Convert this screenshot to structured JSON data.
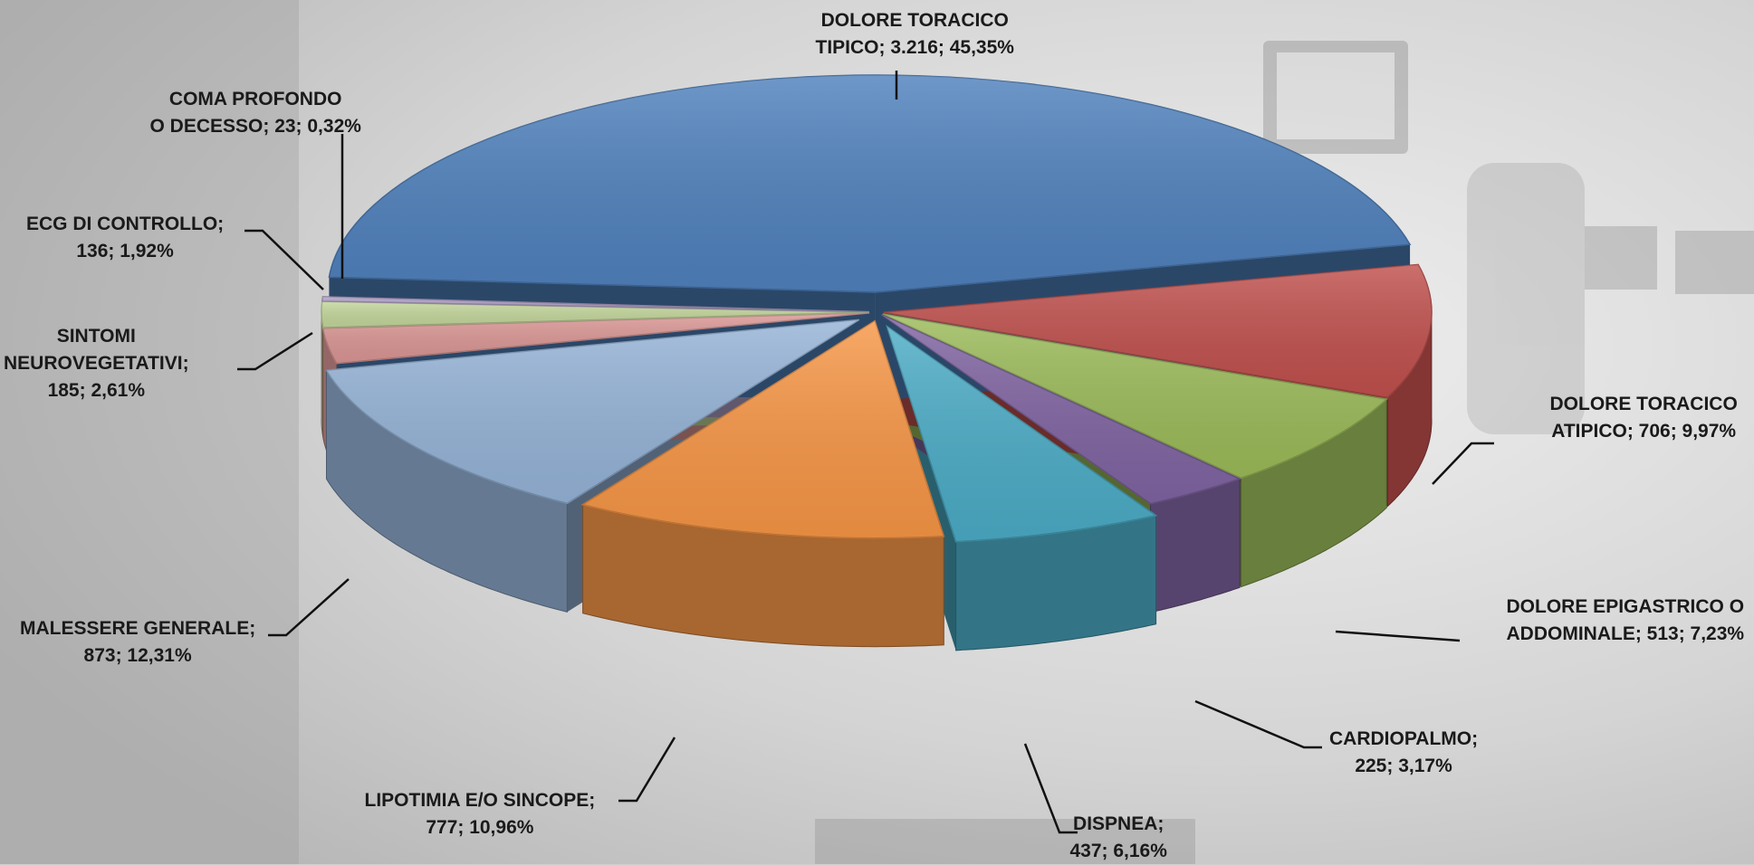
{
  "chart_data": {
    "type": "pie",
    "variant": "3d-exploded",
    "title": "",
    "slices": [
      {
        "key": "dolore-toracico-tipico",
        "label_lines": [
          "DOLORE TORACICO",
          "TIPICO; 3.216; 45,35%"
        ],
        "name": "DOLORE TORACICO TIPICO",
        "value": 3216,
        "percent": 45.35,
        "color": "#4f81bd"
      },
      {
        "key": "dolore-toracico-atipico",
        "label_lines": [
          "DOLORE TORACICO",
          "ATIPICO; 706; 9,97%"
        ],
        "name": "DOLORE TORACICO ATIPICO",
        "value": 706,
        "percent": 9.97,
        "color": "#c0504d"
      },
      {
        "key": "dolore-epigastrico",
        "label_lines": [
          "DOLORE EPIGASTRICO O",
          "ADDOMINALE; 513; 7,23%"
        ],
        "name": "DOLORE EPIGASTRICO O ADDOMINALE",
        "value": 513,
        "percent": 7.23,
        "color": "#9bbb59"
      },
      {
        "key": "cardiopalmo",
        "label_lines": [
          "CARDIOPALMO;",
          "225; 3,17%"
        ],
        "name": "CARDIOPALMO",
        "value": 225,
        "percent": 3.17,
        "color": "#8064a2"
      },
      {
        "key": "dispnea",
        "label_lines": [
          "DISPNEA;",
          "437; 6,16%"
        ],
        "name": "DISPNEA",
        "value": 437,
        "percent": 6.16,
        "color": "#4bacc6"
      },
      {
        "key": "lipotimia",
        "label_lines": [
          "LIPOTIMIA E/O SINCOPE;",
          "777; 10,96%"
        ],
        "name": "LIPOTIMIA E/O SINCOPE",
        "value": 777,
        "percent": 10.96,
        "color": "#f79646"
      },
      {
        "key": "malessere-generale",
        "label_lines": [
          "MALESSERE GENERALE;",
          "873; 12,31%"
        ],
        "name": "MALESSERE GENERALE",
        "value": 873,
        "percent": 12.31,
        "color": "#95b3d7"
      },
      {
        "key": "sintomi-neurovegetativi",
        "label_lines": [
          "SINTOMI",
          "NEUROVEGETATIVI;",
          "185; 2,61%"
        ],
        "name": "SINTOMI NEUROVEGETATIVI",
        "value": 185,
        "percent": 2.61,
        "color": "#da9694"
      },
      {
        "key": "ecg-di-controllo",
        "label_lines": [
          "ECG DI CONTROLLO;",
          "136; 1,92%"
        ],
        "name": "ECG DI CONTROLLO",
        "value": 136,
        "percent": 1.92,
        "color": "#c3d69b"
      },
      {
        "key": "coma-profondo",
        "label_lines": [
          "COMA PROFONDO",
          "O DECESSO; 23; 0,32%"
        ],
        "name": "COMA PROFONDO O DECESSO",
        "value": 23,
        "percent": 0.32,
        "color": "#b1a0c7"
      }
    ]
  }
}
